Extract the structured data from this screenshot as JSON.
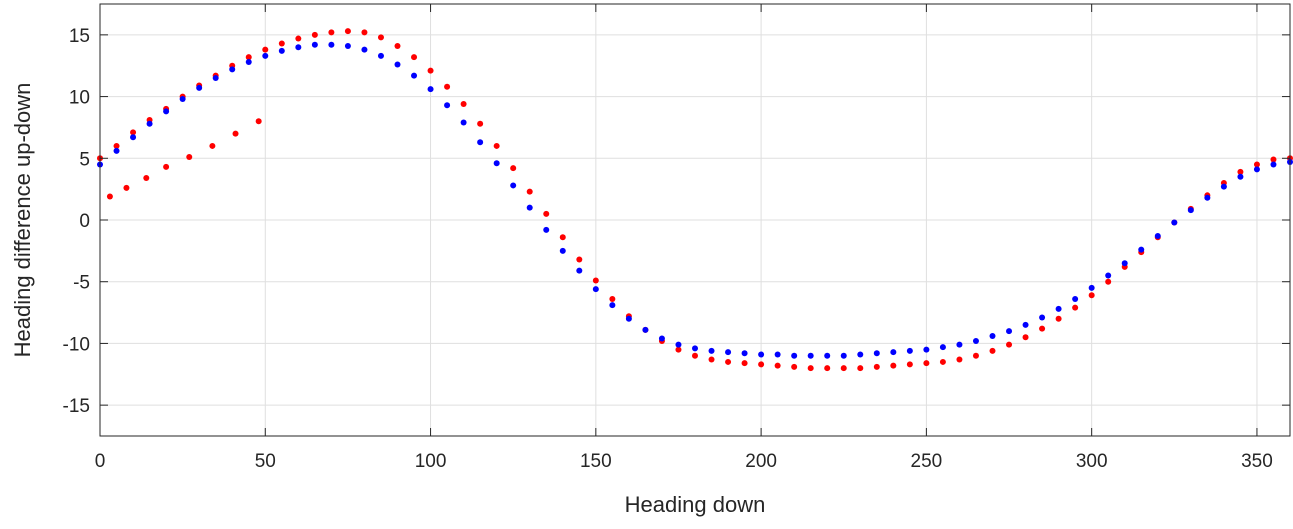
{
  "chart_data": {
    "type": "scatter",
    "title": "",
    "xlabel": "Heading down",
    "ylabel": "Heading difference up-down",
    "xlim": [
      0,
      360
    ],
    "ylim": [
      -17.5,
      17.5
    ],
    "xticks": [
      0,
      50,
      100,
      150,
      200,
      250,
      300,
      350
    ],
    "yticks": [
      15,
      10,
      5,
      0,
      -5,
      -10,
      -15
    ],
    "grid": true,
    "legend": "none",
    "series": [
      {
        "color": "#ff0000",
        "x": [
          0,
          5,
          10,
          15,
          20,
          25,
          30,
          35,
          40,
          45,
          50,
          55,
          60,
          65,
          70,
          75,
          80,
          85,
          90,
          95,
          100,
          105,
          110,
          115,
          120,
          125,
          130,
          135,
          140,
          145,
          150,
          155,
          160,
          165,
          170,
          175,
          180,
          185,
          190,
          195,
          200,
          205,
          210,
          215,
          220,
          225,
          230,
          235,
          240,
          245,
          250,
          255,
          260,
          265,
          270,
          275,
          280,
          285,
          290,
          295,
          300,
          305,
          310,
          315,
          320,
          325,
          330,
          335,
          340,
          345,
          350,
          355,
          360,
          3,
          8,
          14,
          20,
          27,
          34,
          41,
          48
        ],
        "y": [
          5.0,
          6.0,
          7.1,
          8.1,
          9.0,
          10.0,
          10.9,
          11.7,
          12.5,
          13.2,
          13.8,
          14.3,
          14.7,
          15.0,
          15.2,
          15.3,
          15.2,
          14.8,
          14.1,
          13.2,
          12.1,
          10.8,
          9.4,
          7.8,
          6.0,
          4.2,
          2.3,
          0.5,
          -1.4,
          -3.2,
          -4.9,
          -6.4,
          -7.8,
          -8.9,
          -9.8,
          -10.5,
          -11.0,
          -11.3,
          -11.5,
          -11.6,
          -11.7,
          -11.8,
          -11.9,
          -12.0,
          -12.0,
          -12.0,
          -12.0,
          -11.9,
          -11.8,
          -11.7,
          -11.6,
          -11.5,
          -11.3,
          -11.0,
          -10.6,
          -10.1,
          -9.5,
          -8.8,
          -8.0,
          -7.1,
          -6.1,
          -5.0,
          -3.8,
          -2.6,
          -1.4,
          -0.2,
          0.9,
          2.0,
          3.0,
          3.9,
          4.5,
          4.9,
          5.0,
          1.9,
          2.6,
          3.4,
          4.3,
          5.1,
          6.0,
          7.0,
          8.0
        ]
      },
      {
        "color": "#0000ff",
        "x": [
          0,
          5,
          10,
          15,
          20,
          25,
          30,
          35,
          40,
          45,
          50,
          55,
          60,
          65,
          70,
          75,
          80,
          85,
          90,
          95,
          100,
          105,
          110,
          115,
          120,
          125,
          130,
          135,
          140,
          145,
          150,
          155,
          160,
          165,
          170,
          175,
          180,
          185,
          190,
          195,
          200,
          205,
          210,
          215,
          220,
          225,
          230,
          235,
          240,
          245,
          250,
          255,
          260,
          265,
          270,
          275,
          280,
          285,
          290,
          295,
          300,
          305,
          310,
          315,
          320,
          325,
          330,
          335,
          340,
          345,
          350,
          355,
          360
        ],
        "y": [
          4.5,
          5.6,
          6.7,
          7.8,
          8.8,
          9.8,
          10.7,
          11.5,
          12.2,
          12.8,
          13.3,
          13.7,
          14.0,
          14.2,
          14.2,
          14.1,
          13.8,
          13.3,
          12.6,
          11.7,
          10.6,
          9.3,
          7.9,
          6.3,
          4.6,
          2.8,
          1.0,
          -0.8,
          -2.5,
          -4.1,
          -5.6,
          -6.9,
          -8.0,
          -8.9,
          -9.6,
          -10.1,
          -10.4,
          -10.6,
          -10.7,
          -10.8,
          -10.9,
          -10.9,
          -11.0,
          -11.0,
          -11.0,
          -11.0,
          -10.9,
          -10.8,
          -10.7,
          -10.6,
          -10.5,
          -10.3,
          -10.1,
          -9.8,
          -9.4,
          -9.0,
          -8.5,
          -7.9,
          -7.2,
          -6.4,
          -5.5,
          -4.5,
          -3.5,
          -2.4,
          -1.3,
          -0.2,
          0.8,
          1.8,
          2.7,
          3.5,
          4.1,
          4.5,
          4.7
        ]
      }
    ]
  }
}
